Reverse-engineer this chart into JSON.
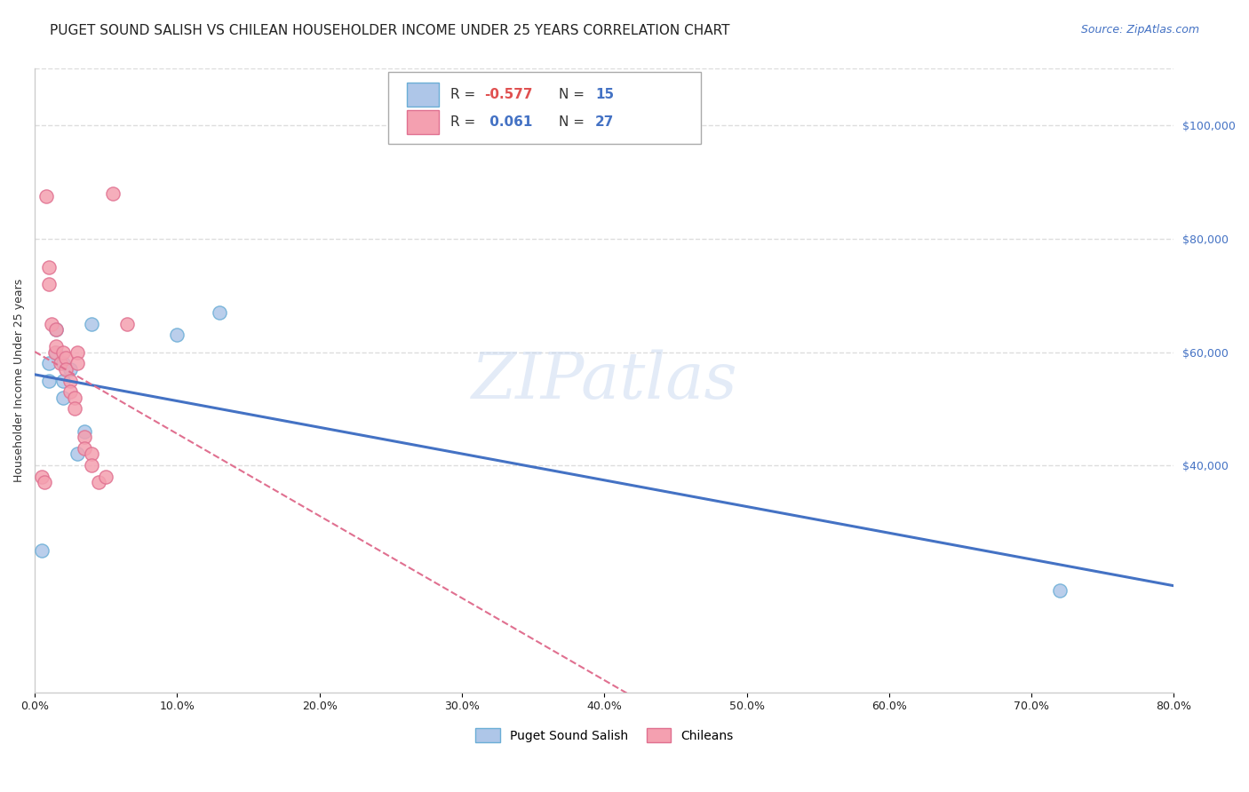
{
  "title": "PUGET SOUND SALISH VS CHILEAN HOUSEHOLDER INCOME UNDER 25 YEARS CORRELATION CHART",
  "source": "Source: ZipAtlas.com",
  "ylabel": "Householder Income Under 25 years",
  "xlabel_ticks": [
    "0.0%",
    "10.0%",
    "20.0%",
    "30.0%",
    "40.0%",
    "50.0%",
    "60.0%",
    "70.0%",
    "80.0%"
  ],
  "xlabel_values": [
    0,
    0.1,
    0.2,
    0.3,
    0.4,
    0.5,
    0.6,
    0.7,
    0.8
  ],
  "ylabel_ticks": [
    "$40,000",
    "$60,000",
    "$80,000",
    "$100,000"
  ],
  "ylabel_values": [
    40000,
    60000,
    80000,
    100000
  ],
  "xlim": [
    0,
    0.8
  ],
  "ylim": [
    0,
    110000
  ],
  "series1_label": "Puget Sound Salish",
  "series2_label": "Chileans",
  "series1_color": "#aec6e8",
  "series2_color": "#f4a0b0",
  "series1_edge_color": "#6baed6",
  "series2_edge_color": "#e07090",
  "line1_color": "#4472c4",
  "line2_color": "#e07090",
  "R1": -0.577,
  "N1": 15,
  "R2": 0.061,
  "N2": 27,
  "puget_x": [
    0.005,
    0.01,
    0.01,
    0.015,
    0.015,
    0.02,
    0.02,
    0.02,
    0.025,
    0.03,
    0.035,
    0.04,
    0.1,
    0.13,
    0.72
  ],
  "puget_y": [
    25000,
    58000,
    55000,
    64000,
    60000,
    58000,
    55000,
    52000,
    57000,
    42000,
    46000,
    65000,
    63000,
    67000,
    18000
  ],
  "chilean_x": [
    0.005,
    0.007,
    0.008,
    0.01,
    0.01,
    0.012,
    0.014,
    0.015,
    0.015,
    0.018,
    0.02,
    0.022,
    0.022,
    0.025,
    0.025,
    0.028,
    0.028,
    0.03,
    0.03,
    0.035,
    0.035,
    0.04,
    0.04,
    0.045,
    0.05,
    0.055,
    0.065
  ],
  "chilean_y": [
    38000,
    37000,
    87500,
    75000,
    72000,
    65000,
    60000,
    64000,
    61000,
    58000,
    60000,
    59000,
    57000,
    55000,
    53000,
    52000,
    50000,
    60000,
    58000,
    45000,
    43000,
    42000,
    40000,
    37000,
    38000,
    88000,
    65000
  ],
  "title_fontsize": 11,
  "axis_label_fontsize": 9,
  "tick_fontsize": 9,
  "source_fontsize": 9,
  "marker_size": 120,
  "background_color": "#ffffff",
  "grid_color": "#dddddd",
  "right_tick_color": "#4472c4"
}
